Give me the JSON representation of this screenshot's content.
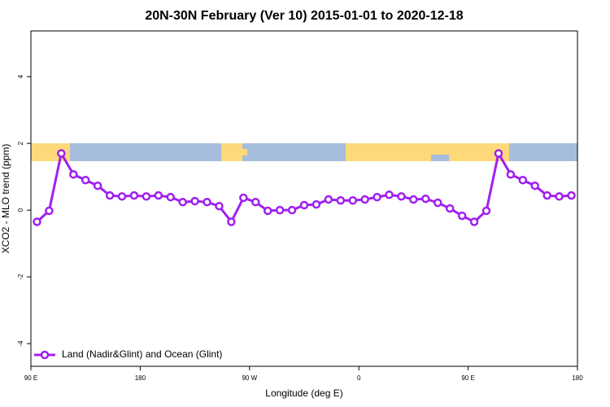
{
  "chart_data": {
    "type": "line",
    "title": "20N-30N February (Ver 10)   2015-01-01 to 2020-12-18",
    "x_label": "Longitude (deg E)",
    "y_label": "XCO2 - MLO trend (ppm)",
    "xlim": [
      90,
      540
    ],
    "xticks": [
      {
        "value": 90,
        "label": "90 E"
      },
      {
        "value": 180,
        "label": "180"
      },
      {
        "value": 270,
        "label": "90 W"
      },
      {
        "value": 360,
        "label": "0"
      },
      {
        "value": 450,
        "label": "90 E"
      },
      {
        "value": 540,
        "label": "180"
      }
    ],
    "ylim": [
      -4.68,
      5.37
    ],
    "yticks": [
      -4,
      -2,
      0,
      2,
      4
    ],
    "legend": "bottomleft",
    "x": [
      95,
      105,
      115,
      125,
      135,
      145,
      155,
      165,
      175,
      185,
      195,
      205,
      215,
      225,
      235,
      245,
      255,
      265,
      275,
      285,
      295,
      305,
      315,
      325,
      335,
      345,
      355,
      365,
      375,
      385,
      395,
      405,
      415,
      425,
      435,
      445,
      455,
      465,
      475,
      485,
      495,
      505,
      515,
      525,
      535
    ],
    "series": [
      {
        "name": "Land (Nadir&Glint) and Ocean (Glint)",
        "color": "#a020f0",
        "values": [
          -0.35,
          -0.02,
          1.7,
          1.07,
          0.9,
          0.73,
          0.44,
          0.41,
          0.44,
          0.41,
          0.44,
          0.39,
          0.24,
          0.27,
          0.24,
          0.12,
          -0.35,
          0.37,
          0.24,
          -0.02,
          0,
          0,
          0.15,
          0.17,
          0.32,
          0.29,
          0.29,
          0.32,
          0.39,
          0.46,
          0.41,
          0.32,
          0.34,
          0.22,
          0.05,
          -0.17,
          -0.35,
          -0.02,
          1.7,
          1.07,
          0.9,
          0.73,
          0.44,
          0.41,
          0.44
        ]
      }
    ]
  }
}
